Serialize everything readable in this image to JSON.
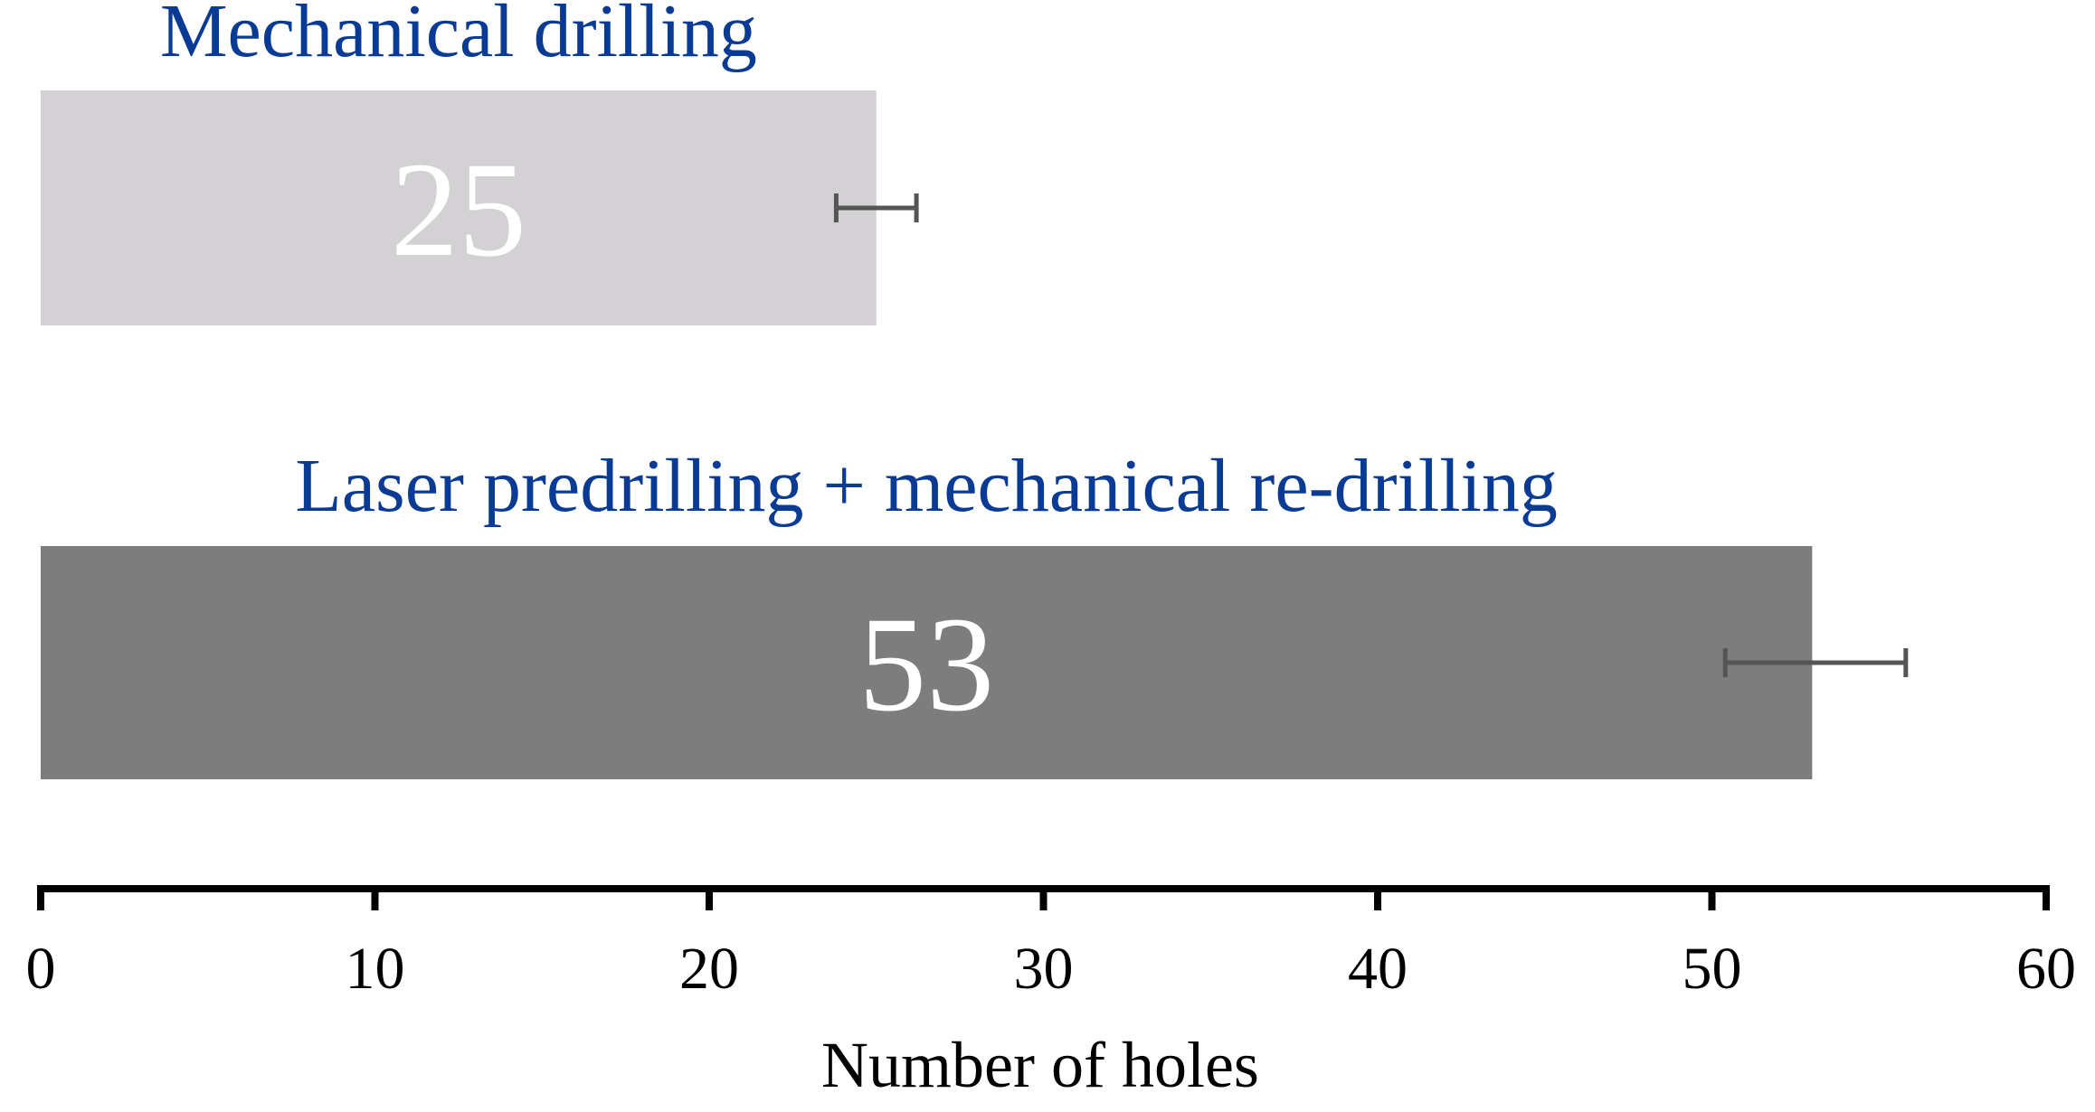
{
  "chart_data": {
    "type": "bar",
    "orientation": "horizontal",
    "categories": [
      "Mechanical drilling",
      "Laser predrilling + mechanical re-drilling"
    ],
    "values": [
      25,
      53
    ],
    "value_labels": [
      "25",
      "53"
    ],
    "error_low": [
      23.8,
      50.4
    ],
    "error_high": [
      26.2,
      55.8
    ],
    "bar_colors": [
      "#d3d1d3",
      "#7d7d7d"
    ],
    "label_color": "#0a3b94",
    "xlabel": "Number of holes",
    "xlim": [
      0,
      60
    ],
    "xticks": [
      0,
      10,
      20,
      30,
      40,
      50,
      60
    ],
    "xtick_labels": [
      "0",
      "10",
      "20",
      "30",
      "40",
      "50",
      "60"
    ],
    "grid": false
  }
}
